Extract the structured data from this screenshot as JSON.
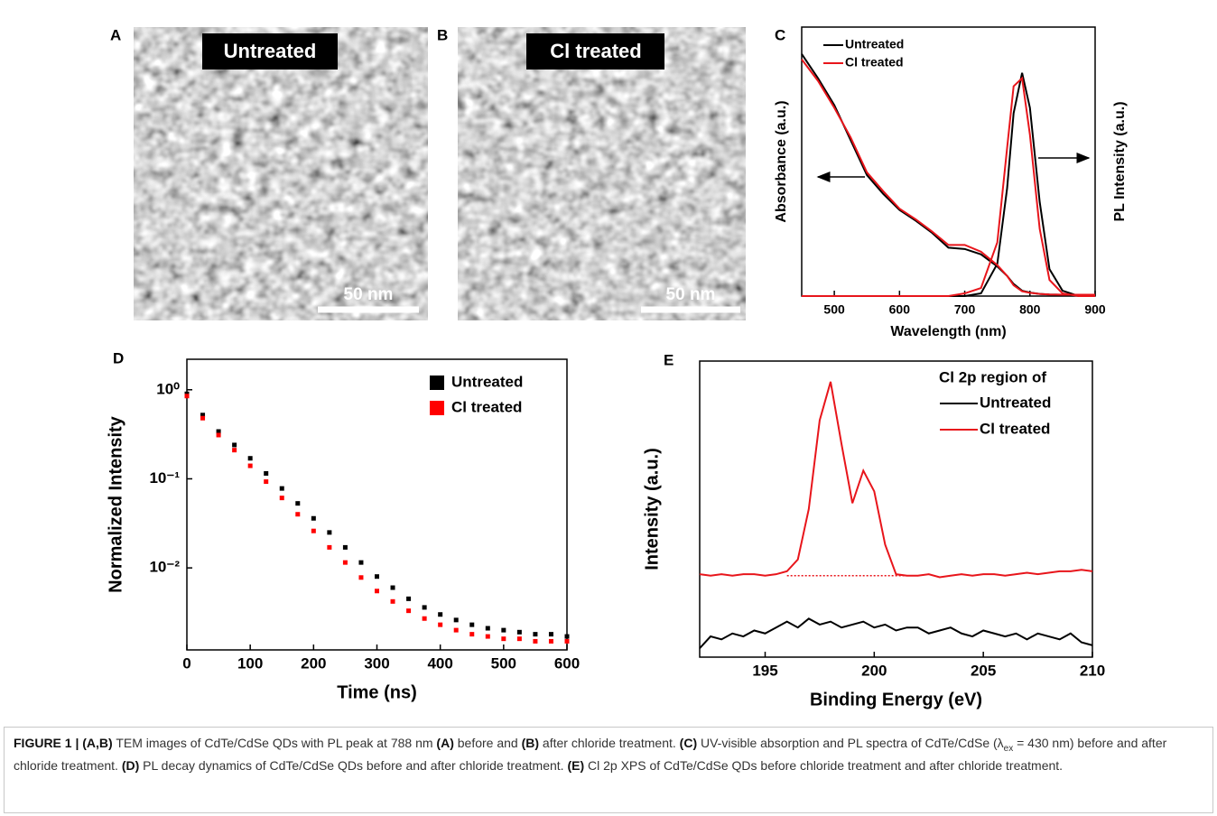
{
  "images": [
    {
      "panel": "A",
      "title": "Untreated",
      "scale_bar": "50 nm"
    },
    {
      "panel": "B",
      "title": "Cl treated",
      "scale_bar": "50 nm"
    }
  ],
  "chart_data": [
    {
      "type": "line",
      "panel": "C",
      "x_label": "Wavelength (nm)",
      "y_label": "Absorbance (a.u.)",
      "y2_label": "PL Intensity (a.u.)",
      "x": [
        450,
        475,
        500,
        525,
        550,
        575,
        600,
        625,
        650,
        675,
        700,
        725,
        750,
        765,
        775,
        788,
        800,
        815,
        830,
        850,
        875,
        900
      ],
      "xlim": [
        450,
        900
      ],
      "xticks": [
        500,
        600,
        700,
        800,
        900
      ],
      "ylim": [
        0,
        1
      ],
      "y2lim": [
        0,
        1
      ],
      "series": [
        {
          "name": "Untreated",
          "color": "#000000",
          "values": [
            0.9,
            0.81,
            0.71,
            0.58,
            0.45,
            0.38,
            0.32,
            0.28,
            0.235,
            0.18,
            0.175,
            0.155,
            0.11,
            0.075,
            0.045,
            0.02,
            0.013,
            0.008,
            0.006,
            0.005,
            0.005,
            0.005
          ],
          "y2_values": [
            0,
            0,
            0,
            0,
            0,
            0,
            0,
            0,
            0,
            0,
            0,
            0.01,
            0.12,
            0.4,
            0.68,
            0.83,
            0.7,
            0.35,
            0.1,
            0.02,
            0,
            0
          ]
        },
        {
          "name": "Cl treated",
          "color": "#e8151b",
          "values": [
            0.88,
            0.8,
            0.7,
            0.59,
            0.46,
            0.39,
            0.325,
            0.285,
            0.24,
            0.19,
            0.19,
            0.165,
            0.115,
            0.075,
            0.04,
            0.018,
            0.012,
            0.008,
            0.006,
            0.005,
            0.005,
            0.005
          ],
          "y2_values": [
            0,
            0,
            0,
            0,
            0,
            0,
            0,
            0,
            0,
            0,
            0.01,
            0.03,
            0.2,
            0.55,
            0.78,
            0.81,
            0.6,
            0.25,
            0.06,
            0.01,
            0,
            0
          ]
        }
      ]
    },
    {
      "type": "scatter",
      "panel": "D",
      "x_label": "Time (ns)",
      "y_label": "Normalized Intensity",
      "log_y": true,
      "x": [
        0,
        25,
        50,
        75,
        100,
        125,
        150,
        175,
        200,
        225,
        250,
        275,
        300,
        325,
        350,
        375,
        400,
        425,
        450,
        475,
        500,
        525,
        550,
        575,
        600
      ],
      "xlim": [
        0,
        600
      ],
      "xticks": [
        0,
        100,
        200,
        300,
        400,
        500,
        600
      ],
      "ylim": [
        0.0012,
        2.2
      ],
      "yticks": [
        {
          "value": 1,
          "label": "10⁰"
        },
        {
          "value": 0.1,
          "label": "10⁻¹"
        },
        {
          "value": 0.01,
          "label": "10⁻²"
        }
      ],
      "series": [
        {
          "name": "Untreated",
          "color": "#000000",
          "values": [
            0.9,
            0.52,
            0.34,
            0.24,
            0.17,
            0.115,
            0.078,
            0.053,
            0.036,
            0.025,
            0.017,
            0.0115,
            0.008,
            0.006,
            0.0045,
            0.0036,
            0.003,
            0.0026,
            0.0023,
            0.0021,
            0.002,
            0.0019,
            0.0018,
            0.0018,
            0.0017
          ]
        },
        {
          "name": "Cl treated",
          "color": "#ff0000",
          "values": [
            0.85,
            0.48,
            0.31,
            0.21,
            0.14,
            0.093,
            0.061,
            0.04,
            0.026,
            0.017,
            0.0115,
            0.0078,
            0.0055,
            0.0042,
            0.0033,
            0.0027,
            0.0023,
            0.002,
            0.0018,
            0.0017,
            0.0016,
            0.0016,
            0.0015,
            0.0015,
            0.0015
          ]
        }
      ]
    },
    {
      "type": "line",
      "panel": "E",
      "x_label": "Binding Energy (eV)",
      "y_label": "Intensity (a.u.)",
      "legend_title": "Cl 2p region of",
      "x": [
        192,
        192.5,
        193,
        193.5,
        194,
        194.5,
        195,
        195.5,
        196,
        196.5,
        197,
        197.5,
        198,
        198.5,
        199,
        199.5,
        200,
        200.5,
        201,
        201.5,
        202,
        202.5,
        203,
        203.5,
        204,
        204.5,
        205,
        205.5,
        206,
        206.5,
        207,
        207.5,
        208,
        208.5,
        209,
        209.5,
        210
      ],
      "xlim": [
        192,
        210
      ],
      "xticks": [
        195,
        200,
        205,
        210
      ],
      "ylim": [
        0,
        1
      ],
      "series": [
        {
          "name": "Untreated",
          "color": "#000000",
          "values": [
            0.03,
            0.07,
            0.06,
            0.08,
            0.07,
            0.09,
            0.08,
            0.1,
            0.12,
            0.1,
            0.13,
            0.11,
            0.12,
            0.1,
            0.11,
            0.12,
            0.1,
            0.11,
            0.09,
            0.1,
            0.1,
            0.08,
            0.09,
            0.1,
            0.08,
            0.07,
            0.09,
            0.08,
            0.07,
            0.08,
            0.06,
            0.08,
            0.07,
            0.06,
            0.08,
            0.05,
            0.04
          ]
        },
        {
          "name": "Cl treated",
          "color": "#e8151b",
          "values": [
            0.28,
            0.275,
            0.28,
            0.275,
            0.28,
            0.28,
            0.275,
            0.28,
            0.29,
            0.33,
            0.5,
            0.8,
            0.93,
            0.72,
            0.52,
            0.63,
            0.56,
            0.38,
            0.28,
            0.275,
            0.275,
            0.28,
            0.27,
            0.275,
            0.28,
            0.275,
            0.28,
            0.28,
            0.275,
            0.28,
            0.285,
            0.28,
            0.285,
            0.29,
            0.29,
            0.295,
            0.29
          ]
        },
        {
          "color": "#e8151b",
          "dash": true,
          "values": [
            null,
            null,
            null,
            null,
            null,
            null,
            null,
            null,
            0.275,
            0.275,
            0.275,
            0.275,
            0.275,
            0.275,
            0.275,
            0.275,
            0.275,
            0.275,
            0.275,
            0.275,
            null,
            null,
            null,
            null,
            null,
            null,
            null,
            null,
            null,
            null,
            null,
            null,
            null,
            null,
            null,
            null,
            null
          ]
        }
      ]
    }
  ],
  "caption": [
    {
      "text": "FIGURE 1 | (A,B)",
      "bold": true
    },
    {
      "text": " TEM images of CdTe/CdSe QDs with PL peak at 788 nm "
    },
    {
      "text": "(A)",
      "bold": true
    },
    {
      "text": " before and "
    },
    {
      "text": "(B)",
      "bold": true
    },
    {
      "text": " after chloride treatment. "
    },
    {
      "text": "(C)",
      "bold": true
    },
    {
      "text": " UV-visible absorption and PL spectra of CdTe/CdSe ("
    },
    {
      "text": "λ"
    },
    {
      "text": "ex",
      "sub": true
    },
    {
      "text": " = 430 nm) before and after chloride treatment. "
    },
    {
      "text": "(D)",
      "bold": true
    },
    {
      "text": " PL decay dynamics of CdTe/CdSe QDs before and after chloride treatment. "
    },
    {
      "text": "(E)",
      "bold": true
    },
    {
      "text": " Cl 2p XPS of CdTe/CdSe QDs before chloride treatment and after chloride treatment."
    }
  ]
}
